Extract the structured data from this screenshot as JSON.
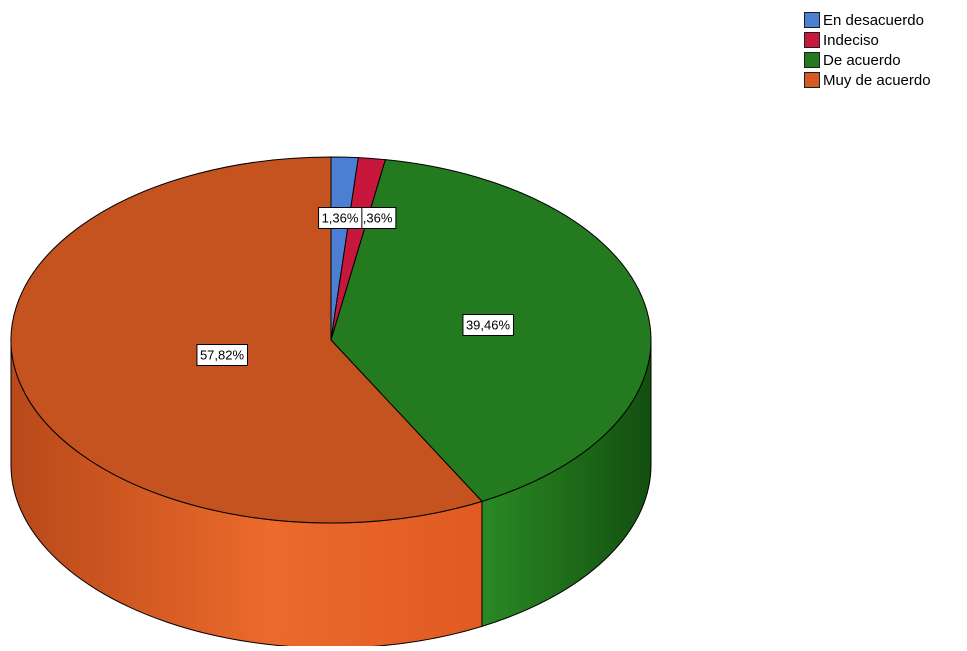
{
  "chart_data": {
    "type": "pie",
    "title": "",
    "categories": [
      "En desacuerdo",
      "Indeciso",
      "De acuerdo",
      "Muy de acuerdo"
    ],
    "values": [
      1.36,
      1.36,
      39.46,
      57.82
    ],
    "value_labels": [
      "1,36%",
      "1,36%",
      "39,46%",
      "57,82%"
    ],
    "colors": [
      "#4a7fd4",
      "#c8173c",
      "#247a1f",
      "#d45a21"
    ],
    "legend_position": "top-right",
    "three_d": true
  }
}
